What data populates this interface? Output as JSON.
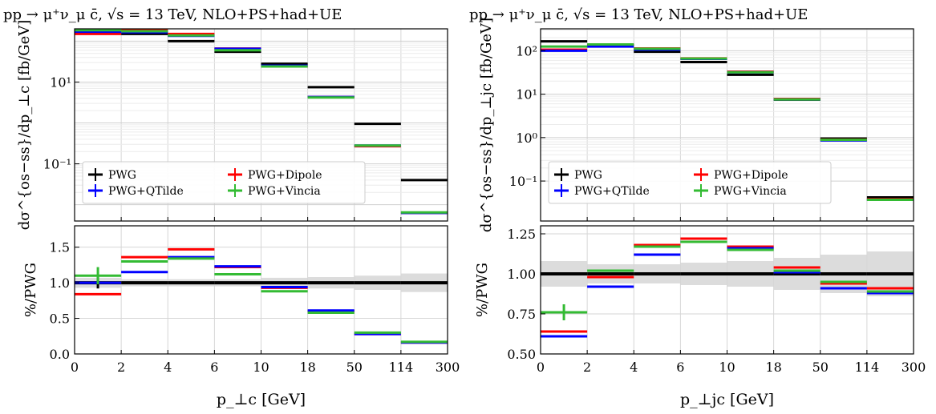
{
  "chart_data": [
    {
      "type": "step",
      "title": "pp → μ⁺ν_μ c̄, √s = 13 TeV, NLO+PS+had+UE",
      "xlabel": "p_⊥c [GeV]",
      "ylabel_main": "dσ^{os−ss}/dp_⊥c [fb/GeV]",
      "ylabel_ratio": "%/PWG",
      "bin_edges": [
        0,
        2,
        4,
        6,
        10,
        18,
        50,
        114,
        300
      ],
      "x_tick_labels": [
        "0",
        "2",
        "4",
        "6",
        "10",
        "18",
        "50",
        "114",
        "300"
      ],
      "main_yscale": "log",
      "main_ylim": [
        0.004,
        200
      ],
      "main_y_ticks": [
        {
          "value": 10,
          "label": "10¹"
        },
        {
          "value": 0.1,
          "label": "10⁻¹"
        }
      ],
      "ratio_ylim": [
        0.0,
        1.8
      ],
      "ratio_y_ticks": [
        "0.0",
        "0.5",
        "1.0",
        "1.5"
      ],
      "grid": true,
      "legend_location": "lower-left",
      "series": [
        {
          "name": "PWG",
          "color": "#000000",
          "main": [
            180,
            150,
            100,
            55,
            28,
            7.5,
            0.95,
            0.04
          ],
          "ratio": [
            1.0,
            1.0,
            1.0,
            1.0,
            1.0,
            1.0,
            1.0,
            1.0
          ],
          "ratio_err_bin0": 0.08
        },
        {
          "name": "PWG+QTilde",
          "color": "#0000ff",
          "main": [
            170,
            165,
            135,
            65,
            25,
            4.3,
            0.28,
            0.0063
          ],
          "ratio": [
            1.0,
            1.15,
            1.36,
            1.23,
            0.94,
            0.61,
            0.28,
            0.16
          ]
        },
        {
          "name": "PWG+Dipole",
          "color": "#ff0000",
          "main": [
            150,
            185,
            150,
            66,
            24,
            4.3,
            0.27,
            0.0063
          ],
          "ratio": [
            0.84,
            1.36,
            1.47,
            1.22,
            0.93,
            0.6,
            0.28,
            0.16
          ]
        },
        {
          "name": "PWG+Vincia",
          "color": "#33bb33",
          "main": [
            185,
            175,
            138,
            60,
            24,
            4.2,
            0.28,
            0.0065
          ],
          "ratio": [
            1.1,
            1.3,
            1.34,
            1.12,
            0.88,
            0.58,
            0.3,
            0.17
          ],
          "ratio_err_bin0": 0.12
        }
      ],
      "uncertainty_band": {
        "low": [
          0.93,
          0.95,
          0.95,
          0.95,
          0.93,
          0.92,
          0.9,
          0.87
        ],
        "high": [
          1.07,
          1.05,
          1.05,
          1.05,
          1.07,
          1.08,
          1.1,
          1.13
        ]
      }
    },
    {
      "type": "step",
      "title": "pp → μ⁺ν_μ c̄, √s = 13 TeV, NLO+PS+had+UE",
      "xlabel": "p_⊥jc [GeV]",
      "ylabel_main": "dσ^{os−ss}/dp_⊥jc [fb/GeV]",
      "ylabel_ratio": "%/PWG",
      "bin_edges": [
        0,
        2,
        4,
        6,
        10,
        18,
        50,
        114,
        300
      ],
      "x_tick_labels": [
        "0",
        "2",
        "4",
        "6",
        "10",
        "18",
        "50",
        "114",
        "300"
      ],
      "main_yscale": "log",
      "main_ylim": [
        0.012,
        320
      ],
      "main_y_ticks": [
        {
          "value": 100,
          "label": "10²"
        },
        {
          "value": 10,
          "label": "10¹"
        },
        {
          "value": 1,
          "label": "10⁰"
        },
        {
          "value": 0.1,
          "label": "10⁻¹"
        }
      ],
      "ratio_ylim": [
        0.5,
        1.3
      ],
      "ratio_y_ticks": [
        "0.50",
        "0.75",
        "1.00",
        "1.25"
      ],
      "grid": true,
      "legend_location": "lower-left",
      "series": [
        {
          "name": "PWG",
          "color": "#000000",
          "main": [
            165,
            135,
            95,
            55,
            28,
            7.5,
            0.95,
            0.042
          ],
          "ratio": [
            1.0,
            1.0,
            1.0,
            1.0,
            1.0,
            1.0,
            1.0,
            1.0
          ],
          "ratio_err_bin0": 0.01
        },
        {
          "name": "PWG+QTilde",
          "color": "#0000ff",
          "main": [
            100,
            125,
            106,
            65,
            32,
            7.6,
            0.86,
            0.037
          ],
          "ratio": [
            0.61,
            0.92,
            1.12,
            1.2,
            1.16,
            1.01,
            0.91,
            0.88
          ]
        },
        {
          "name": "PWG+Dipole",
          "color": "#ff0000",
          "main": [
            106,
            134,
            113,
            67,
            33,
            7.8,
            0.9,
            0.038
          ],
          "ratio": [
            0.64,
            0.98,
            1.18,
            1.22,
            1.17,
            1.04,
            0.94,
            0.91
          ]
        },
        {
          "name": "PWG+Vincia",
          "color": "#33bb33",
          "main": [
            125,
            140,
            111,
            66,
            32,
            7.6,
            0.89,
            0.037
          ],
          "ratio": [
            0.76,
            1.02,
            1.17,
            1.2,
            1.15,
            1.02,
            0.95,
            0.89
          ],
          "ratio_err_bin0": 0.05
        }
      ],
      "uncertainty_band": {
        "low": [
          0.92,
          0.94,
          0.94,
          0.93,
          0.92,
          0.9,
          0.88,
          0.86
        ],
        "high": [
          1.08,
          1.06,
          1.06,
          1.07,
          1.08,
          1.1,
          1.12,
          1.14
        ]
      }
    }
  ]
}
